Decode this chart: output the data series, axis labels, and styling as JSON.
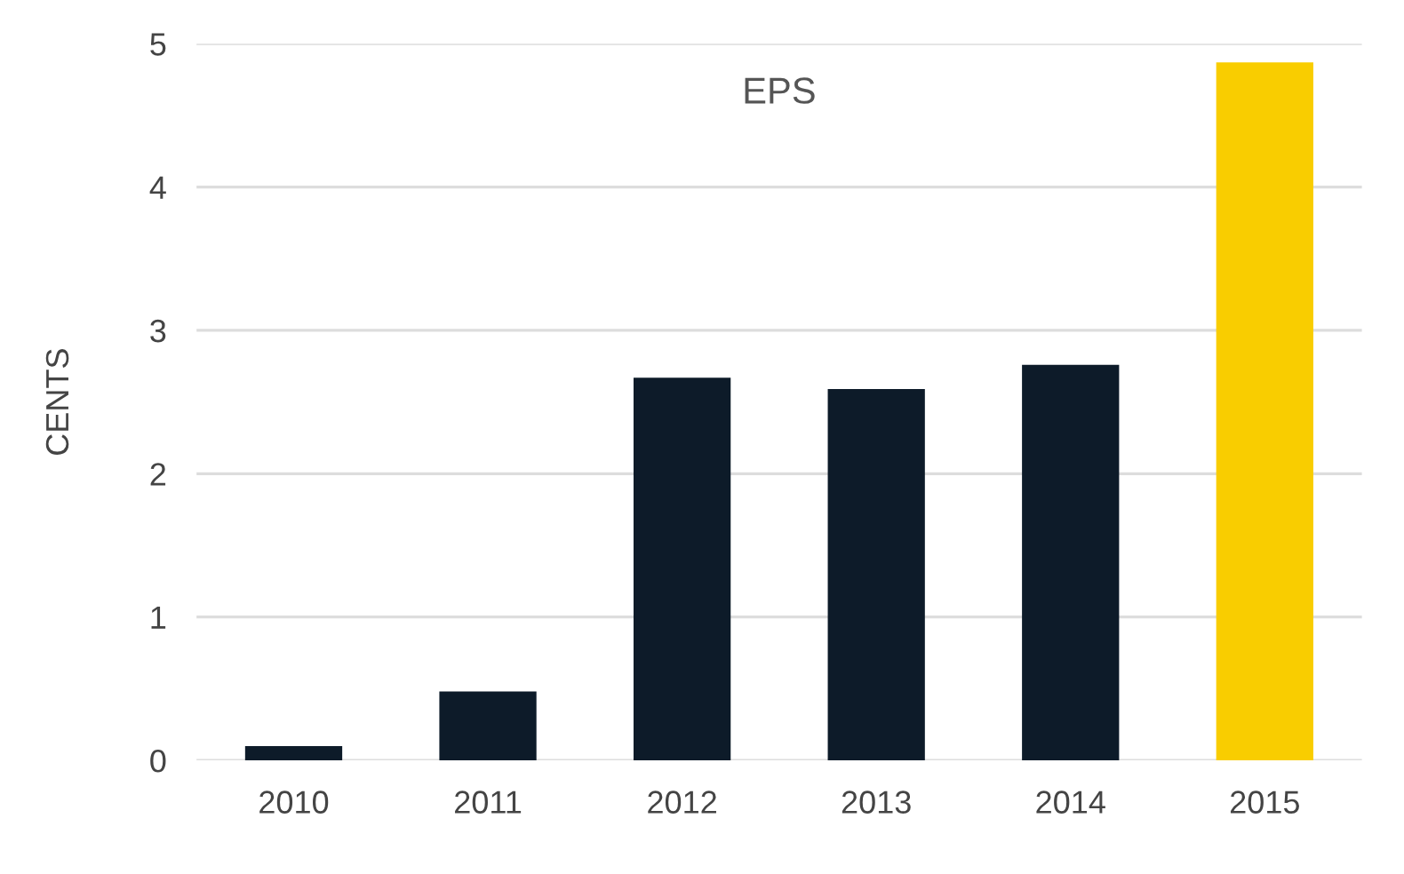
{
  "chart_data": {
    "type": "bar",
    "title": "EPS",
    "ylabel": "CENTS",
    "categories": [
      "2010",
      "2011",
      "2012",
      "2013",
      "2014",
      "2015"
    ],
    "values": [
      0.1,
      0.48,
      2.67,
      2.59,
      2.76,
      4.87
    ],
    "colors": [
      "#0d1b29",
      "#0d1b29",
      "#0d1b29",
      "#0d1b29",
      "#0d1b29",
      "#f9cd00"
    ],
    "ylim": [
      0,
      5
    ],
    "yticks": [
      0,
      1,
      2,
      3,
      4,
      5
    ],
    "grid": "y"
  }
}
